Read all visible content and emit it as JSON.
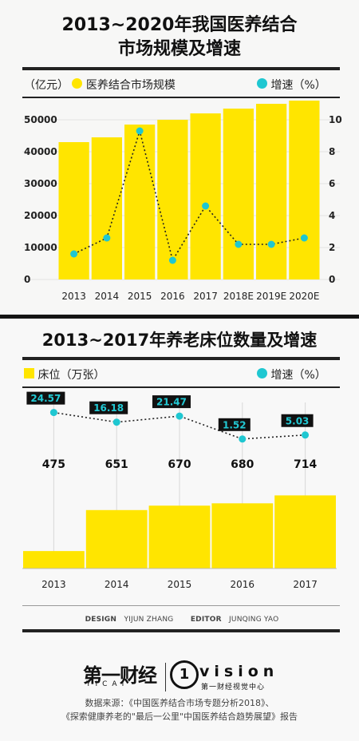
{
  "chart1": {
    "title_line1": "2013~2020年我国医养结合",
    "title_line2": "市场规模及增速",
    "legend_left_unit": "（亿元）",
    "legend_bar": "医养结合市场规模",
    "legend_line": "增速（%）",
    "colors": {
      "bar": "#ffe500",
      "dot": "#1fc7d1"
    }
  },
  "chart2": {
    "title": "2013~2017年养老床位数量及增速",
    "legend_bar": "床位（万张）",
    "legend_line": "增速（%）",
    "colors": {
      "bar": "#ffe500",
      "dot": "#1fc7d1",
      "badge": "#111111",
      "badge_text": "#22c9d4"
    }
  },
  "chart_data": [
    {
      "type": "bar",
      "categories": [
        "2013",
        "2014",
        "2015",
        "2016",
        "2017",
        "2018E",
        "2019E",
        "2020E"
      ],
      "series": [
        {
          "name": "医养结合市场规模",
          "values": [
            43000,
            44500,
            48500,
            50000,
            52000,
            53500,
            55000,
            56000
          ]
        },
        {
          "name": "增速（%）",
          "type": "line",
          "values": [
            1.6,
            2.6,
            9.3,
            1.2,
            4.6,
            2.2,
            2.2,
            2.6
          ]
        }
      ],
      "y_left_ticks": [
        "0",
        "10000",
        "20000",
        "30000",
        "40000",
        "50000"
      ],
      "y_left_lim": [
        0,
        55000
      ],
      "y_right_ticks": [
        "0",
        "2",
        "4",
        "6",
        "8",
        "10"
      ],
      "y_right_lim": [
        0,
        11
      ]
    },
    {
      "type": "bar",
      "categories": [
        "2013",
        "2014",
        "2015",
        "2016",
        "2017"
      ],
      "series": [
        {
          "name": "床位（万张）",
          "values": [
            475,
            651,
            670,
            680,
            714
          ]
        },
        {
          "name": "增速（%）",
          "type": "line",
          "values": [
            24.57,
            16.18,
            21.47,
            1.52,
            5.03
          ]
        }
      ],
      "bar_labels": [
        "475",
        "651",
        "670",
        "680",
        "714"
      ],
      "line_labels": [
        "24.57",
        "16.18",
        "21.47",
        "1.52",
        "5.03"
      ]
    }
  ],
  "credits": {
    "design_label": "DESIGN",
    "design_name": "YIJUN ZHANG",
    "editor_label": "EDITOR",
    "editor_name": "JUNQING YAO"
  },
  "footer": {
    "logo_main": "第一财经",
    "logo_sub": "YICAI",
    "vision_mark": "1",
    "vision_text": "vision",
    "vision_sub": "第一财经视觉中心",
    "source_line1": "数据来源：《中国医养结合市场专题分析2018》、",
    "source_line2": "《探索健康养老的\"最后一公里\"中国医养结合趋势展望》报告"
  }
}
